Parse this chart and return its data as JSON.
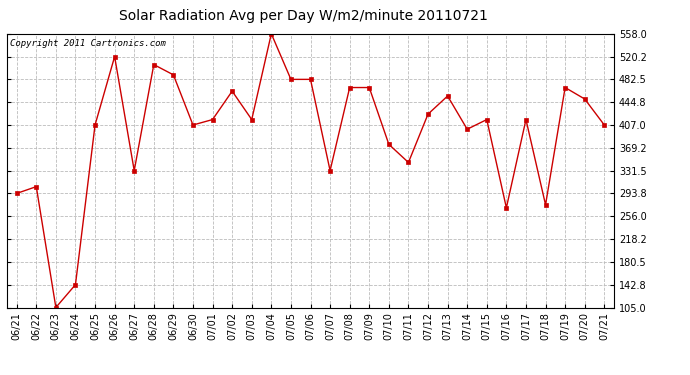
{
  "title": "Solar Radiation Avg per Day W/m2/minute 20110721",
  "copyright": "Copyright 2011 Cartronics.com",
  "dates": [
    "06/21",
    "06/22",
    "06/23",
    "06/24",
    "06/25",
    "06/26",
    "06/27",
    "06/28",
    "06/29",
    "06/30",
    "07/01",
    "07/02",
    "07/03",
    "07/04",
    "07/05",
    "07/06",
    "07/07",
    "07/08",
    "07/09",
    "07/10",
    "07/11",
    "07/12",
    "07/13",
    "07/14",
    "07/15",
    "07/16",
    "07/17",
    "07/18",
    "07/19",
    "07/20",
    "07/21"
  ],
  "values": [
    293.8,
    305.0,
    105.0,
    142.8,
    407.0,
    520.2,
    331.5,
    507.0,
    490.0,
    407.0,
    416.0,
    463.0,
    416.0,
    558.0,
    482.5,
    482.5,
    331.5,
    469.0,
    469.0,
    375.0,
    345.0,
    425.0,
    455.0,
    400.0,
    416.0,
    270.0,
    416.0,
    275.0,
    469.0,
    450.0,
    407.0
  ],
  "line_color": "#cc0000",
  "marker_color": "#cc0000",
  "bg_color": "#ffffff",
  "grid_color": "#bbbbbb",
  "ylim_min": 105.0,
  "ylim_max": 558.0,
  "yticks": [
    105.0,
    142.8,
    180.5,
    218.2,
    256.0,
    293.8,
    331.5,
    369.2,
    407.0,
    444.8,
    482.5,
    520.2,
    558.0
  ],
  "title_fontsize": 10,
  "copyright_fontsize": 6.5,
  "tick_fontsize": 7
}
